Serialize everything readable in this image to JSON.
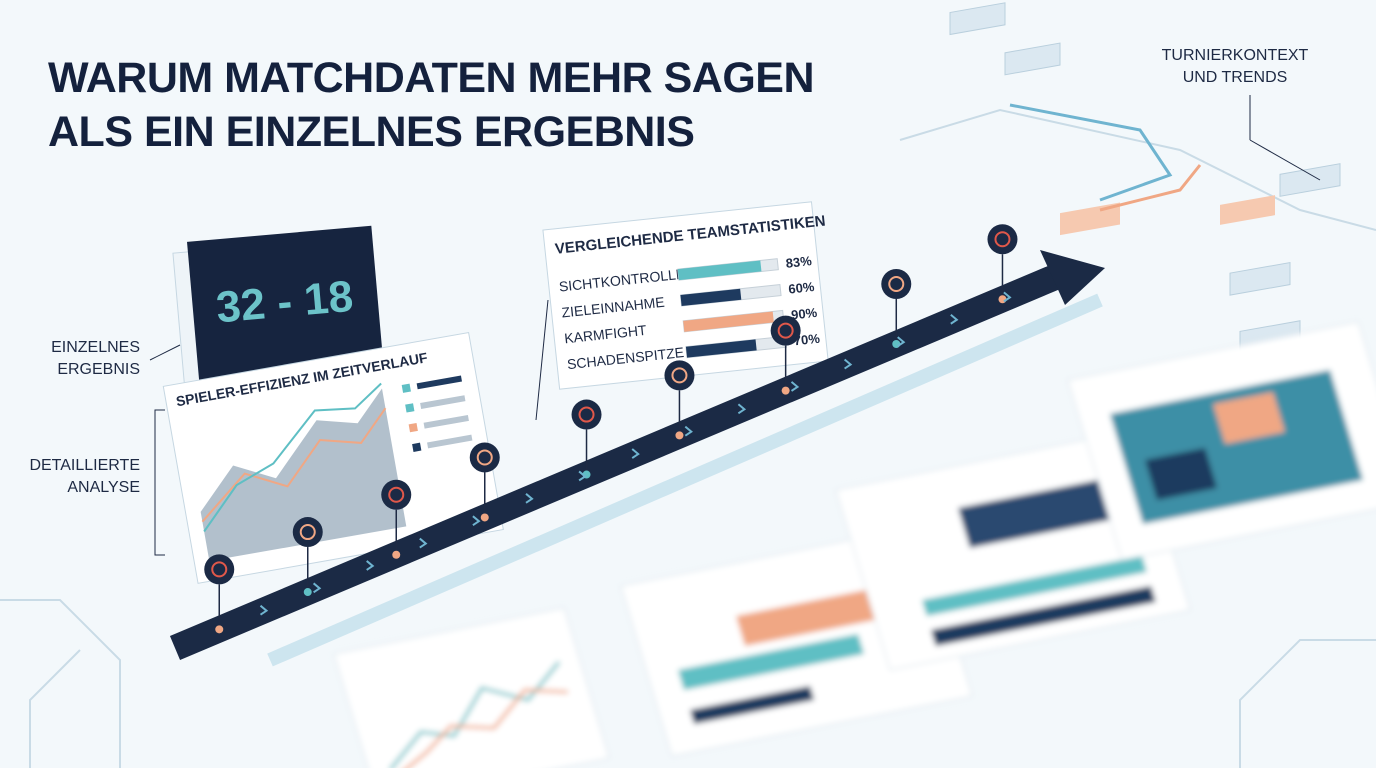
{
  "header": {
    "title_lines": [
      "WARUM MATCHDATEN MEHR SAGEN",
      "ALS EIN EINZELNES ERGEBNIS"
    ]
  },
  "corner_label": [
    "TURNIERKONTEXT",
    "UND TRENDS"
  ],
  "side_labels": {
    "single": [
      "EINZELNES",
      "ERGEBNIS"
    ],
    "detail": [
      "DETAILLIERTE",
      "ANALYSE"
    ]
  },
  "score": "32 - 18",
  "efficiency_panel": {
    "title": "SPIELER-EFFIZIENZ IM ZEITVERLAUF"
  },
  "team_stats": {
    "title": "VERGLEICHENDE TEAMSTATISTIKEN",
    "rows": [
      {
        "label": "SICHTKONTROLLE",
        "value": {
          "value": 83,
          "label": "83%"
        }
      },
      {
        "label": "ZIELEINNAHME",
        "value": {
          "value": 60,
          "label": "60%"
        }
      },
      {
        "label": "KARMFIGHT",
        "value": {
          "value": 90,
          "label": "90%"
        }
      },
      {
        "label": "SCHADENSPITZE",
        "value": {
          "value": 70,
          "label": "70%"
        }
      }
    ]
  }
}
